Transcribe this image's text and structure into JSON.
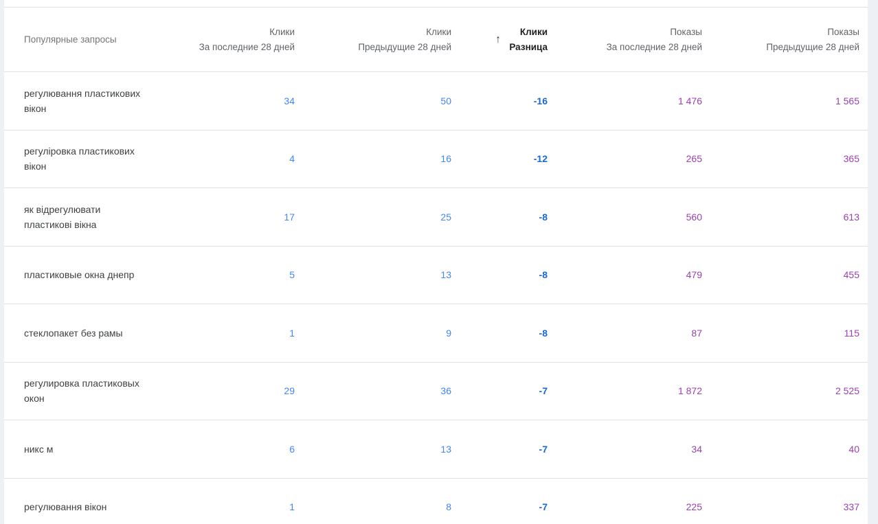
{
  "table": {
    "query_header": "Популярные запросы",
    "columns": [
      {
        "line1": "Клики",
        "line2": "За последние 28 дней",
        "sorted": false
      },
      {
        "line1": "Клики",
        "line2": "Предыдущие 28 дней",
        "sorted": false
      },
      {
        "line1": "Клики",
        "line2": "Разница",
        "sorted": true,
        "sort_icon": "arrow-up"
      },
      {
        "line1": "Показы",
        "line2": "За последние 28 дней",
        "sorted": false
      },
      {
        "line1": "Показы",
        "line2": "Предыдущие 28 дней",
        "sorted": false
      }
    ],
    "rows": [
      {
        "query": "регулювання пластикових вікон",
        "clicks_last": "34",
        "clicks_prev": "50",
        "clicks_diff": "-16",
        "impressions_last": "1 476",
        "impressions_prev": "1 565"
      },
      {
        "query": "регуліровка пластикових вікон",
        "clicks_last": "4",
        "clicks_prev": "16",
        "clicks_diff": "-12",
        "impressions_last": "265",
        "impressions_prev": "365"
      },
      {
        "query": "як відрегулювати пластикові вікна",
        "clicks_last": "17",
        "clicks_prev": "25",
        "clicks_diff": "-8",
        "impressions_last": "560",
        "impressions_prev": "613"
      },
      {
        "query": "пластиковые окна днепр",
        "clicks_last": "5",
        "clicks_prev": "13",
        "clicks_diff": "-8",
        "impressions_last": "479",
        "impressions_prev": "455"
      },
      {
        "query": "стеклопакет без рамы",
        "clicks_last": "1",
        "clicks_prev": "9",
        "clicks_diff": "-8",
        "impressions_last": "87",
        "impressions_prev": "115"
      },
      {
        "query": "регулировка пластиковых окон",
        "clicks_last": "29",
        "clicks_prev": "36",
        "clicks_diff": "-7",
        "impressions_last": "1 872",
        "impressions_prev": "2 525"
      },
      {
        "query": "никс м",
        "clicks_last": "6",
        "clicks_prev": "13",
        "clicks_diff": "-7",
        "impressions_last": "34",
        "impressions_prev": "40"
      },
      {
        "query": "регулювання вікон",
        "clicks_last": "1",
        "clicks_prev": "8",
        "clicks_diff": "-7",
        "impressions_last": "225",
        "impressions_prev": "337"
      }
    ]
  },
  "icons": {
    "sort": "↑"
  },
  "colors": {
    "clicks": "#4285f4",
    "diff": "#1967d2",
    "impressions": "#9c40b0"
  }
}
